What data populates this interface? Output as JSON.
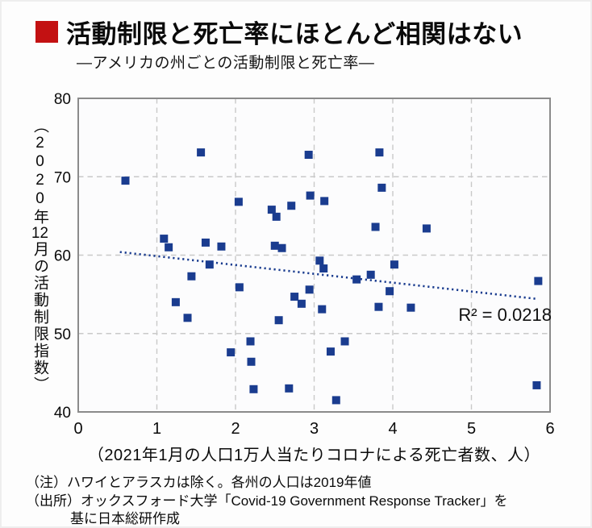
{
  "header": {
    "title": "活動制限と死亡率にほとんど相関はない",
    "subtitle": "―アメリカの州ごとの活動制限と死亡率―",
    "accent_color": "#c31112"
  },
  "chart_data": {
    "type": "scatter",
    "title": "活動制限と死亡率にほとんど相関はない",
    "subtitle": "―アメリカの州ごとの活動制限と死亡率―",
    "xlabel": "（2021年1月の人口1万人当たりコロナによる死亡者数、人）",
    "ylabel": "（2020年12月の活動制限指数）",
    "ylabel_parts": {
      "pre": "（2020年",
      "tcy": "12",
      "post": "月の活動制限指数）"
    },
    "xlim": [
      0,
      6
    ],
    "ylim": [
      40,
      80
    ],
    "x_ticks": [
      0,
      1,
      2,
      3,
      4,
      5,
      6
    ],
    "y_ticks": [
      40,
      50,
      60,
      70,
      80
    ],
    "grid": true,
    "legend": "none",
    "marker_shape": "square",
    "marker_color": "#1a3c8f",
    "grid_color": "#c9c9c9",
    "border_color": "#8b8b8b",
    "points": [
      [
        0.6,
        69.5
      ],
      [
        1.56,
        73.1
      ],
      [
        2.93,
        72.8
      ],
      [
        3.83,
        73.1
      ],
      [
        2.95,
        67.6
      ],
      [
        2.04,
        66.8
      ],
      [
        2.46,
        65.8
      ],
      [
        2.52,
        64.9
      ],
      [
        2.71,
        66.3
      ],
      [
        3.13,
        66.9
      ],
      [
        3.86,
        68.6
      ],
      [
        1.09,
        62.1
      ],
      [
        1.15,
        61.0
      ],
      [
        1.62,
        61.6
      ],
      [
        1.82,
        61.1
      ],
      [
        2.5,
        61.2
      ],
      [
        2.59,
        60.9
      ],
      [
        3.78,
        63.6
      ],
      [
        4.43,
        63.4
      ],
      [
        1.67,
        58.8
      ],
      [
        1.44,
        57.3
      ],
      [
        2.05,
        55.9
      ],
      [
        1.24,
        54.0
      ],
      [
        1.39,
        52.0
      ],
      [
        2.75,
        54.7
      ],
      [
        2.84,
        53.8
      ],
      [
        2.94,
        55.6
      ],
      [
        2.55,
        51.7
      ],
      [
        2.19,
        49.0
      ],
      [
        1.94,
        47.6
      ],
      [
        2.2,
        46.4
      ],
      [
        2.23,
        42.9
      ],
      [
        2.68,
        43.0
      ],
      [
        3.07,
        59.3
      ],
      [
        3.12,
        58.3
      ],
      [
        3.54,
        56.9
      ],
      [
        3.72,
        57.5
      ],
      [
        4.02,
        58.8
      ],
      [
        3.96,
        55.4
      ],
      [
        3.1,
        53.1
      ],
      [
        3.82,
        53.4
      ],
      [
        4.23,
        53.3
      ],
      [
        5.85,
        56.7
      ],
      [
        3.39,
        49.0
      ],
      [
        3.21,
        47.7
      ],
      [
        3.28,
        41.5
      ],
      [
        5.83,
        43.4
      ]
    ],
    "trendline": {
      "x1": 0.53,
      "y1": 60.4,
      "x2": 5.85,
      "y2": 54.4,
      "style": "dotted"
    },
    "annotation": {
      "text": "R² = 0.0218",
      "x": 6.02,
      "y": 51.6
    }
  },
  "footnotes": {
    "note": "（注）ハワイとアラスカは除く。各州の人口は2019年値",
    "source_line1": "（出所）オックスフォード大学「Covid-19 Government Response Tracker」を",
    "source_line2": "基に日本総研作成"
  }
}
